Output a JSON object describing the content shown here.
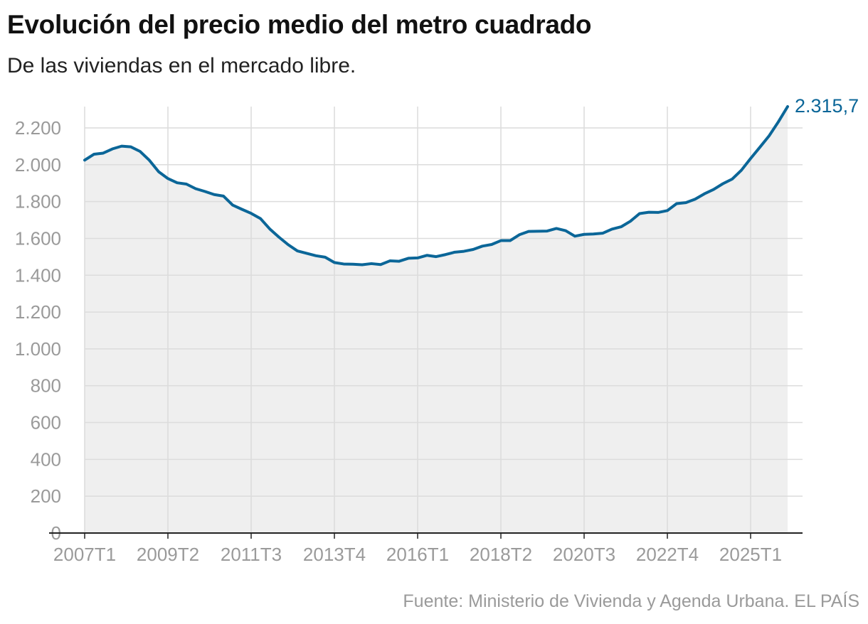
{
  "header": {
    "title": "Evolución del precio medio del metro cuadrado",
    "subtitle": "De las viviendas en el mercado libre."
  },
  "footer": {
    "source": "Fuente: Ministerio de Vivienda y Agenda Urbana. EL PAÍS"
  },
  "colors": {
    "line": "#0b6698",
    "area": "#efefef",
    "grid": "#dcdcdc",
    "axis": "#222222",
    "tick_text": "#9a9a9a",
    "end_label": "#0b6698"
  },
  "chart_data": {
    "type": "area",
    "title": "Evolución del precio medio del metro cuadrado",
    "subtitle": "De las viviendas en el mercado libre.",
    "xlabel": "",
    "ylabel": "",
    "x_tick_labels": [
      "2007T1",
      "2009T2",
      "2011T3",
      "2013T4",
      "2016T1",
      "2018T2",
      "2020T3",
      "2022T4",
      "2025T1"
    ],
    "y_ticks": [
      0,
      200,
      400,
      600,
      800,
      1000,
      1200,
      1400,
      1600,
      1800,
      2000,
      2200
    ],
    "y_tick_labels": [
      "0",
      "200",
      "400",
      "600",
      "800",
      "1.000",
      "1.200",
      "1.400",
      "1.600",
      "1.800",
      "2.000",
      "2.200"
    ],
    "ylim": [
      0,
      2315.7
    ],
    "grid": true,
    "end_label": "2.315,7",
    "series": [
      {
        "x": [
          "2007T1",
          "2007T2",
          "2007T3",
          "2007T4",
          "2008T1",
          "2008T2",
          "2008T3",
          "2008T4",
          "2009T1",
          "2009T2",
          "2009T3",
          "2009T4",
          "2010T1",
          "2010T2",
          "2010T3",
          "2010T4",
          "2011T1",
          "2011T2",
          "2011T3",
          "2011T4",
          "2012T1",
          "2012T2",
          "2012T3",
          "2012T4",
          "2013T1",
          "2013T2",
          "2013T3",
          "2013T4",
          "2014T1",
          "2014T2",
          "2014T3",
          "2014T4",
          "2015T1",
          "2015T2",
          "2015T3",
          "2015T4",
          "2016T1",
          "2016T2",
          "2016T3",
          "2016T4",
          "2017T1",
          "2017T2",
          "2017T3",
          "2017T4",
          "2018T1",
          "2018T2",
          "2018T3",
          "2018T4",
          "2019T1",
          "2019T2",
          "2019T3",
          "2019T4",
          "2020T1",
          "2020T2",
          "2020T3",
          "2020T4",
          "2021T1",
          "2021T2",
          "2021T3",
          "2021T4",
          "2022T1",
          "2022T2",
          "2022T3",
          "2022T4",
          "2023T1",
          "2023T2",
          "2023T3",
          "2023T4",
          "2024T1",
          "2024T2",
          "2024T3",
          "2024T4",
          "2025T1",
          "2025T2",
          "2025T3",
          "2025T4",
          "2026T1"
        ],
        "values": [
          2025,
          2057,
          2063,
          2086,
          2101,
          2097,
          2072,
          2024,
          1962,
          1925,
          1902,
          1895,
          1870,
          1855,
          1838,
          1830,
          1781,
          1758,
          1736,
          1708,
          1652,
          1607,
          1566,
          1532,
          1519,
          1506,
          1498,
          1469,
          1461,
          1460,
          1457,
          1463,
          1458,
          1478,
          1476,
          1492,
          1494,
          1508,
          1501,
          1512,
          1525,
          1530,
          1540,
          1558,
          1567,
          1588,
          1588,
          1620,
          1638,
          1639,
          1640,
          1654,
          1642,
          1612,
          1622,
          1624,
          1628,
          1650,
          1663,
          1693,
          1735,
          1742,
          1741,
          1751,
          1789,
          1794,
          1813,
          1842,
          1866,
          1897,
          1922,
          1970,
          2034,
          2095,
          2157,
          2233,
          2315.7
        ]
      }
    ]
  }
}
